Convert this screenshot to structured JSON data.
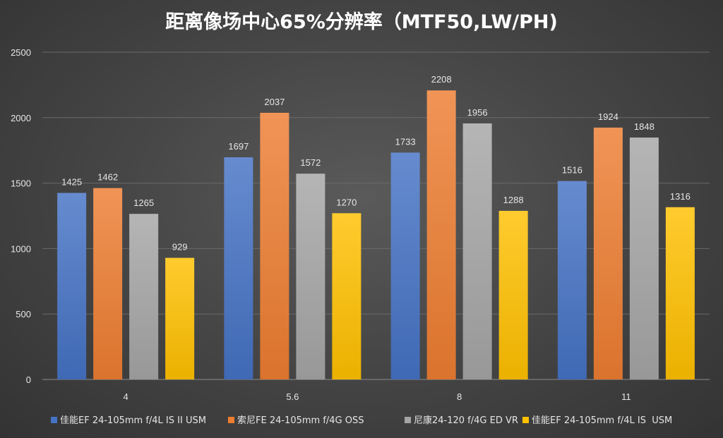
{
  "chart_data": {
    "type": "bar",
    "title": "距离像场中心65%分辨率（MTF50,LW/PH)",
    "xlabel": "",
    "ylabel": "",
    "categories": [
      "4",
      "5.6",
      "8",
      "11"
    ],
    "ylim": [
      0,
      2500
    ],
    "yticks": [
      0,
      500,
      1000,
      1500,
      2000,
      2500
    ],
    "grid": true,
    "legend_position": "bottom",
    "series": [
      {
        "name": "佳能EF 24-105mm f/4L IS II USM",
        "color": "#4472c4",
        "values": [
          1425,
          1697,
          1733,
          1516
        ]
      },
      {
        "name": "索尼FE 24-105mm f/4G OSS",
        "color": "#ed7d31",
        "values": [
          1462,
          2037,
          2208,
          1924
        ]
      },
      {
        "name": "尼康24-120 f/4G ED VR",
        "color": "#a5a5a5",
        "values": [
          1265,
          1572,
          1956,
          1848
        ]
      },
      {
        "name": "佳能EF 24-105mm f/4L IS  USM",
        "color": "#ffc000",
        "values": [
          929,
          1270,
          1288,
          1316
        ]
      }
    ]
  }
}
